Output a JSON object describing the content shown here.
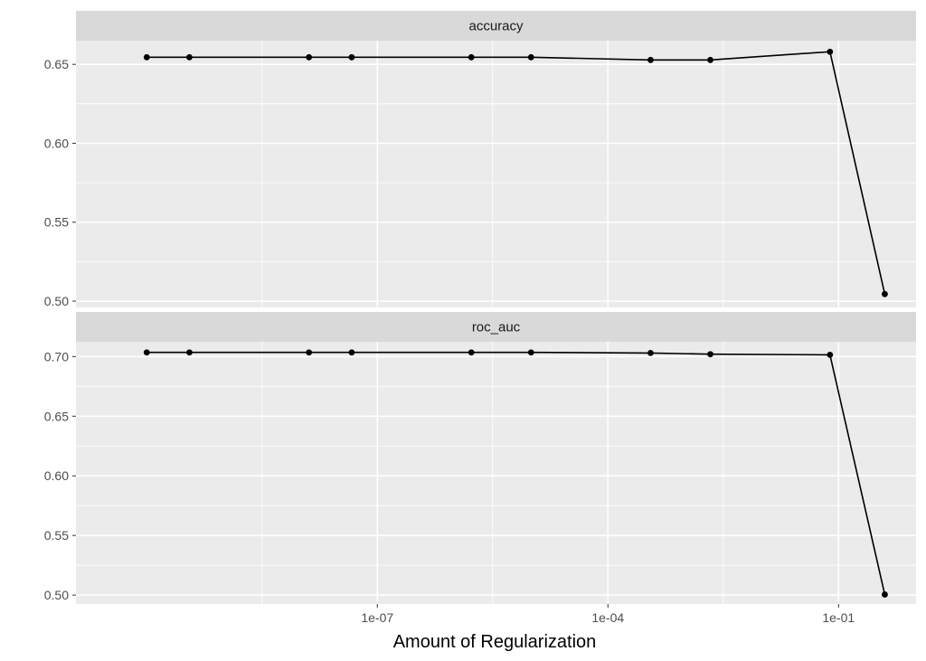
{
  "chart_data": {
    "type": "line",
    "xlabel": "Amount of Regularization",
    "ylabel": "",
    "x_scale": "log10",
    "x": [
      1e-10,
      3.59e-10,
      1.29e-08,
      4.64e-08,
      1.67e-06,
      1e-05,
      0.000359,
      0.00215,
      0.0774,
      0.4
    ],
    "xlim": [
      1.2e-11,
      1.02
    ],
    "x_ticks": [
      1e-07,
      0.0001,
      0.1
    ],
    "x_tick_labels": [
      "1e-07",
      "1e-04",
      "1e-01"
    ],
    "facets": [
      {
        "label": "accuracy",
        "ylim": [
          0.496,
          0.665
        ],
        "y_ticks": [
          0.5,
          0.55,
          0.6,
          0.65
        ],
        "y_tick_labels": [
          "0.50",
          "0.55",
          "0.60",
          "0.65"
        ],
        "values": [
          0.6545,
          0.6545,
          0.6545,
          0.6545,
          0.6545,
          0.6545,
          0.6528,
          0.6528,
          0.658,
          0.5045
        ]
      },
      {
        "label": "roc_auc",
        "ylim": [
          0.4925,
          0.7124
        ],
        "y_ticks": [
          0.5,
          0.55,
          0.6,
          0.65,
          0.7
        ],
        "y_tick_labels": [
          "0.50",
          "0.55",
          "0.60",
          "0.65",
          "0.70"
        ],
        "values": [
          0.7035,
          0.7035,
          0.7035,
          0.7035,
          0.7035,
          0.7035,
          0.703,
          0.702,
          0.7015,
          0.5005
        ]
      }
    ],
    "grid": true,
    "legend": "none"
  }
}
